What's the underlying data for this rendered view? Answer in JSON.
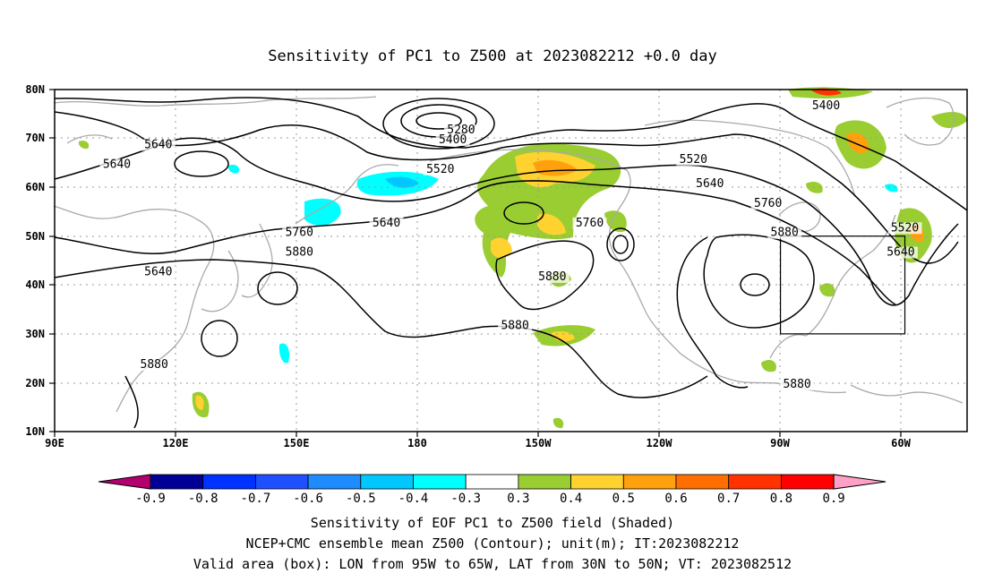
{
  "title": "Sensitivity of PC1 to Z500 at 2023082212 +0.0 day",
  "lat_labels": [
    "80N",
    "70N",
    "60N",
    "50N",
    "40N",
    "30N",
    "20N",
    "10N"
  ],
  "lon_labels": [
    "90E",
    "120E",
    "150E",
    "180",
    "150W",
    "120W",
    "90W",
    "60W"
  ],
  "contour_labels": [
    {
      "text": "5640",
      "lon": 115,
      "lat": 68
    },
    {
      "text": "5640",
      "lon": 105,
      "lat": 64
    },
    {
      "text": "5280",
      "lon": -172,
      "lat": 71
    },
    {
      "text": "5400",
      "lon": -174,
      "lat": 69
    },
    {
      "text": "5520",
      "lon": -177,
      "lat": 63
    },
    {
      "text": "5520",
      "lon": -116,
      "lat": 65
    },
    {
      "text": "5640",
      "lon": -112,
      "lat": 60
    },
    {
      "text": "5400",
      "lon": -84,
      "lat": 76
    },
    {
      "text": "5640",
      "lon": 170,
      "lat": 52
    },
    {
      "text": "5760",
      "lon": 149,
      "lat": 50
    },
    {
      "text": "5880",
      "lon": 149,
      "lat": 46
    },
    {
      "text": "5640",
      "lon": 115,
      "lat": 42
    },
    {
      "text": "5760",
      "lon": -141,
      "lat": 52
    },
    {
      "text": "5880",
      "lon": -150,
      "lat": 41
    },
    {
      "text": "5760",
      "lon": -98,
      "lat": 56
    },
    {
      "text": "5880",
      "lon": -94,
      "lat": 50
    },
    {
      "text": "5520",
      "lon": -65,
      "lat": 51
    },
    {
      "text": "5640",
      "lon": -66,
      "lat": 46
    },
    {
      "text": "5880",
      "lon": -159,
      "lat": 31
    },
    {
      "text": "5880",
      "lon": 114,
      "lat": 23
    },
    {
      "text": "5880",
      "lon": -91,
      "lat": 19
    }
  ],
  "valid_box": {
    "lon_min": -95,
    "lon_max": -65,
    "lat_min": 30,
    "lat_max": 50
  },
  "colorbar": {
    "labels": [
      "-0.9",
      "-0.8",
      "-0.7",
      "-0.6",
      "-0.5",
      "-0.4",
      "-0.3",
      "0.3",
      "0.4",
      "0.5",
      "0.6",
      "0.7",
      "0.8",
      "0.9"
    ],
    "colors": [
      "#000096",
      "#0032ff",
      "#1e50ff",
      "#1e8cff",
      "#00c8ff",
      "#00ffff",
      "#ffffff",
      "#9acd32",
      "#ffd230",
      "#ffa00c",
      "#ff6e00",
      "#ff3200",
      "#ff0000"
    ],
    "low_color": "#b4006e",
    "high_color": "#ffa0c8"
  },
  "footer": {
    "line1": "Sensitivity of EOF PC1 to Z500 field (Shaded)",
    "line2": "NCEP+CMC ensemble mean Z500 (Contour); unit(m); IT:2023082212",
    "line3": "Valid area (box): LON from 95W to 65W, LAT from 30N to 50N; VT: 2023082512"
  }
}
